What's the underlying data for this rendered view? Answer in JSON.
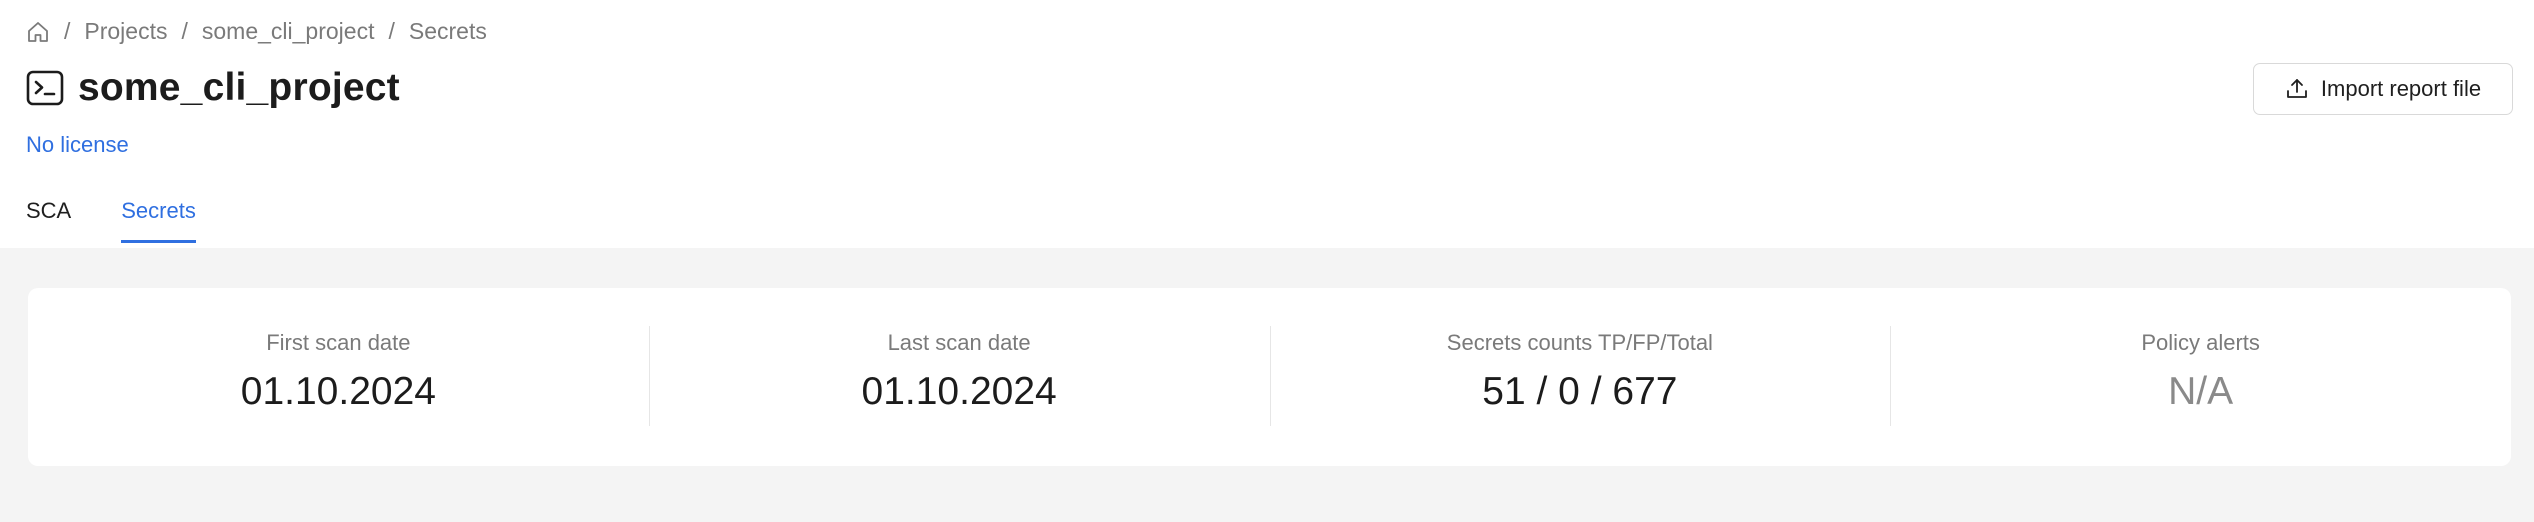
{
  "breadcrumb": {
    "items": [
      "Projects",
      "some_cli_project",
      "Secrets"
    ],
    "separator": "/"
  },
  "project": {
    "title": "some_cli_project",
    "license_text": "No license"
  },
  "actions": {
    "import_label": "Import report file"
  },
  "tabs": [
    {
      "label": "SCA",
      "active": false
    },
    {
      "label": "Secrets",
      "active": true
    }
  ],
  "stats": [
    {
      "label": "First scan date",
      "value": "01.10.2024"
    },
    {
      "label": "Last scan date",
      "value": "01.10.2024"
    },
    {
      "label": "Secrets counts TP/FP/Total",
      "value": "51 / 0 / 677"
    },
    {
      "label": "Policy alerts",
      "value": "N/A"
    }
  ],
  "colors": {
    "accent": "#2f6fe0",
    "muted_text": "#7a7a7a",
    "background": "#f4f4f4"
  },
  "icons": {
    "home": "home-icon",
    "project_type": "terminal-icon",
    "import": "upload-icon"
  }
}
